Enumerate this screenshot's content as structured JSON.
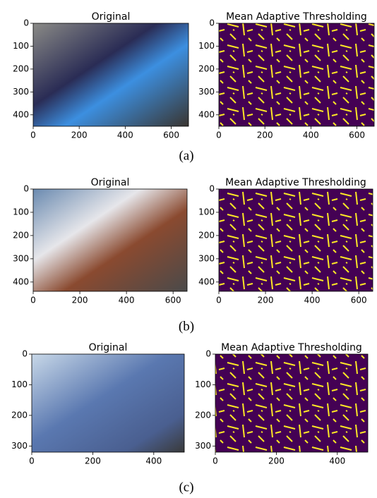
{
  "figures": [
    {
      "caption": "(a)",
      "panels": [
        {
          "title": "Original",
          "xlim": [
            0,
            675
          ],
          "ylim": [
            0,
            450
          ],
          "y_inverted": true,
          "xticks": [
            0,
            200,
            400,
            600
          ],
          "yticks": [
            0,
            100,
            200,
            300,
            400
          ]
        },
        {
          "title": "Mean Adaptive Thresholding",
          "xlim": [
            0,
            675
          ],
          "ylim": [
            0,
            450
          ],
          "y_inverted": true,
          "xticks": [
            0,
            200,
            400,
            600
          ],
          "yticks": [
            0,
            100,
            200,
            300,
            400
          ]
        }
      ]
    },
    {
      "caption": "(b)",
      "panels": [
        {
          "title": "Original",
          "xlim": [
            0,
            660
          ],
          "ylim": [
            0,
            440
          ],
          "y_inverted": true,
          "xticks": [
            0,
            200,
            400,
            600
          ],
          "yticks": [
            0,
            100,
            200,
            300,
            400
          ]
        },
        {
          "title": "Mean Adaptive Thresholding",
          "xlim": [
            0,
            660
          ],
          "ylim": [
            0,
            440
          ],
          "y_inverted": true,
          "xticks": [
            0,
            200,
            400,
            600
          ],
          "yticks": [
            0,
            100,
            200,
            300,
            400
          ]
        }
      ]
    },
    {
      "caption": "(c)",
      "panels": [
        {
          "title": "Original",
          "xlim": [
            0,
            500
          ],
          "ylim": [
            0,
            320
          ],
          "y_inverted": true,
          "xticks": [
            0,
            200,
            400
          ],
          "yticks": [
            0,
            100,
            200,
            300
          ]
        },
        {
          "title": "Mean Adaptive Thresholding",
          "xlim": [
            0,
            500
          ],
          "ylim": [
            0,
            320
          ],
          "y_inverted": true,
          "xticks": [
            0,
            200,
            400
          ],
          "yticks": [
            0,
            100,
            200,
            300
          ]
        }
      ]
    }
  ]
}
